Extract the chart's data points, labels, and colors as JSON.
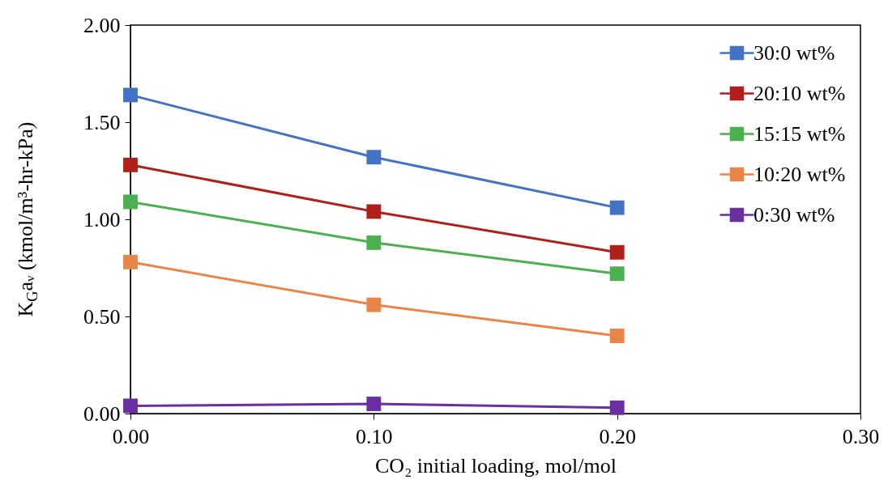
{
  "chart_data": {
    "type": "line",
    "xlabel": "CO₂ initial loading, mol/mol",
    "ylabel": "K$_{G}$aᵥ (kmol/m³-hr-kPa)",
    "x": [
      0,
      0.1,
      0.2
    ],
    "series": [
      {
        "name": "30:0 wt%",
        "color": "#4472c4",
        "values": [
          1.64,
          1.32,
          1.06
        ]
      },
      {
        "name": "20:10 wt%",
        "color": "#b0201b",
        "values": [
          1.28,
          1.04,
          0.83
        ]
      },
      {
        "name": "15:15 wt%",
        "color": "#4caf50",
        "values": [
          1.09,
          0.88,
          0.72
        ]
      },
      {
        "name": "10:20 wt%",
        "color": "#e8864a",
        "values": [
          0.78,
          0.56,
          0.4
        ]
      },
      {
        "name": "0:30 wt%",
        "color": "#6a2fa0",
        "values": [
          0.04,
          0.05,
          0.03
        ]
      }
    ],
    "xlim": [
      0,
      0.3
    ],
    "xticks": [
      {
        "value": 0,
        "label": "0.00"
      },
      {
        "value": 0.1,
        "label": "0.10"
      },
      {
        "value": 0.2,
        "label": "0.20"
      },
      {
        "value": 0.3,
        "label": "0.30"
      }
    ],
    "ylim": [
      0,
      2
    ],
    "yticks": [
      {
        "value": 0,
        "label": "0.00"
      },
      {
        "value": 0.5,
        "label": "0.50"
      },
      {
        "value": 1,
        "label": "1.00"
      },
      {
        "value": 1.5,
        "label": "1.50"
      },
      {
        "value": 2,
        "label": "2.00"
      }
    ],
    "legend": "top right",
    "marker": "square",
    "line_style": "solid"
  }
}
